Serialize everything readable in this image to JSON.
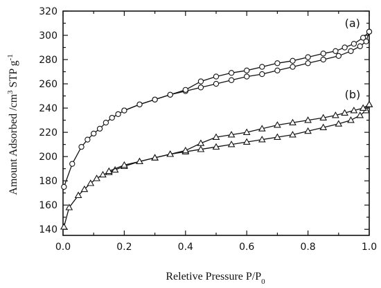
{
  "chart_data": {
    "type": "line",
    "xlabel": "Reletive Pressure P/P",
    "xlabel_sub": "0",
    "ylabel_prefix": "Amount Adsorbed /cm",
    "ylabel_sup3": "3",
    "ylabel_mid": " STP g",
    "ylabel_sup_neg1": "-1",
    "xlim": [
      0.0,
      1.0
    ],
    "ylim": [
      135,
      320
    ],
    "xticks": [
      "0.0",
      "0.2",
      "0.4",
      "0.6",
      "0.8",
      "1.0"
    ],
    "yticks": [
      "140",
      "160",
      "180",
      "200",
      "220",
      "240",
      "260",
      "280",
      "300",
      "320"
    ],
    "annotations": [
      {
        "text": "(a)",
        "x": 0.92,
        "y": 307
      },
      {
        "text": "(b)",
        "x": 0.92,
        "y": 248
      }
    ],
    "series": [
      {
        "marker": "circle",
        "branch": "adsorption",
        "x": [
          0.003,
          0.03,
          0.06,
          0.08,
          0.1,
          0.12,
          0.14,
          0.16,
          0.18,
          0.2,
          0.25,
          0.3,
          0.35,
          0.4,
          0.45,
          0.5,
          0.55,
          0.6,
          0.65,
          0.7,
          0.75,
          0.8,
          0.85,
          0.9,
          0.94,
          0.97,
          0.99,
          1.0
        ],
        "y": [
          175,
          194,
          208,
          214,
          219,
          223,
          228,
          232,
          235,
          238,
          243,
          247,
          251,
          254,
          257,
          260,
          263,
          266,
          268,
          271,
          274,
          277,
          280,
          283,
          287,
          291,
          295,
          303
        ]
      },
      {
        "marker": "circle",
        "branch": "desorption",
        "x": [
          1.0,
          0.98,
          0.95,
          0.92,
          0.89,
          0.85,
          0.8,
          0.75,
          0.7,
          0.65,
          0.6,
          0.55,
          0.5,
          0.45,
          0.4,
          0.35,
          0.3,
          0.25,
          0.2
        ],
        "y": [
          303,
          298,
          293,
          290,
          287,
          285,
          282,
          279,
          277,
          274,
          271,
          269,
          266,
          262,
          255,
          251,
          247,
          243,
          238
        ]
      },
      {
        "marker": "triangle",
        "branch": "adsorption",
        "x": [
          0.003,
          0.02,
          0.05,
          0.07,
          0.09,
          0.11,
          0.13,
          0.15,
          0.17,
          0.2,
          0.25,
          0.3,
          0.35,
          0.4,
          0.45,
          0.5,
          0.55,
          0.6,
          0.65,
          0.7,
          0.75,
          0.8,
          0.85,
          0.9,
          0.94,
          0.97,
          0.99,
          1.0
        ],
        "y": [
          142,
          158,
          168,
          173,
          178,
          182,
          185,
          187,
          189,
          192,
          196,
          199,
          202,
          204,
          206,
          208,
          210,
          212,
          214,
          216,
          218,
          221,
          224,
          227,
          230,
          234,
          238,
          243
        ]
      },
      {
        "marker": "triangle",
        "branch": "desorption",
        "x": [
          1.0,
          0.98,
          0.95,
          0.92,
          0.89,
          0.85,
          0.8,
          0.75,
          0.7,
          0.65,
          0.6,
          0.55,
          0.5,
          0.45,
          0.4,
          0.35,
          0.3,
          0.25,
          0.2,
          0.15
        ],
        "y": [
          243,
          240,
          238,
          236,
          234,
          232,
          230,
          228,
          226,
          223,
          220,
          218,
          216,
          211,
          205,
          202,
          199,
          196,
          193,
          188
        ]
      }
    ]
  }
}
